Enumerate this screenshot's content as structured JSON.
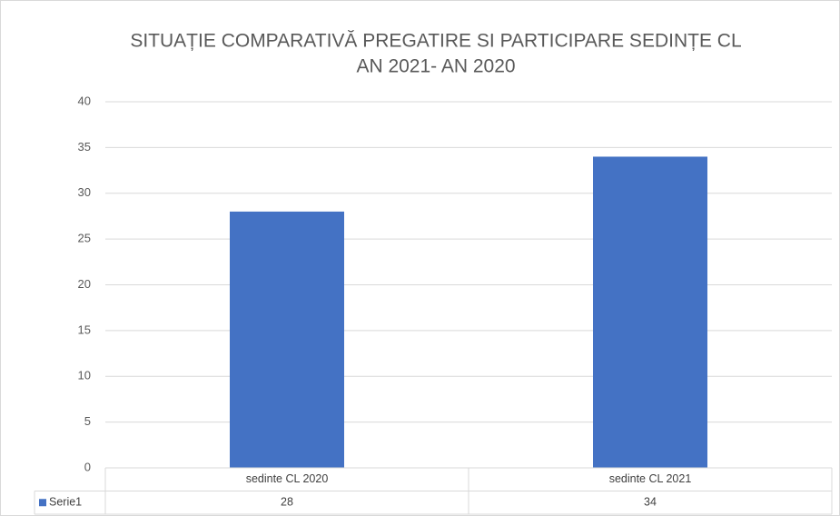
{
  "chart_data": {
    "type": "bar",
    "title": [
      "SITUAȚIE COMPARATIVĂ PREGATIRE SI PARTICIPARE SEDINȚE CL",
      "AN 2021- AN 2020"
    ],
    "categories": [
      "sedinte CL 2020",
      "sedinte CL 2021"
    ],
    "series": [
      {
        "name": "Serie1",
        "color": "#4472c4",
        "values": [
          28,
          34
        ]
      }
    ],
    "ylim": [
      0,
      40
    ],
    "yticks": [
      0,
      5,
      10,
      15,
      20,
      25,
      30,
      35,
      40
    ],
    "grid": true
  }
}
